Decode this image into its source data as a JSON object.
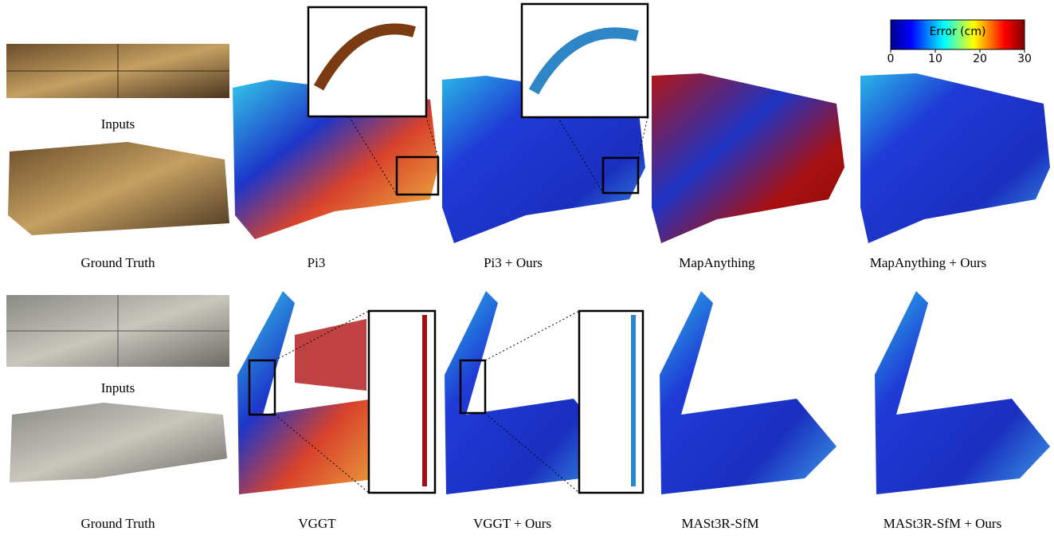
{
  "colorbar": {
    "label": "Error (cm)",
    "range": [
      0,
      30
    ],
    "ticks": [
      0,
      10,
      20,
      30
    ]
  },
  "rows": [
    {
      "inputs": "Inputs",
      "ground_truth": "Ground Truth",
      "methods": [
        "Pi3",
        "Pi3 + Ours",
        "MapAnything",
        "MapAnything + Ours"
      ]
    },
    {
      "inputs": "Inputs",
      "ground_truth": "Ground Truth",
      "methods": [
        "VGGT",
        "VGGT + Ours",
        "MASt3R-SfM",
        "MASt3R-SfM + Ours"
      ]
    }
  ]
}
